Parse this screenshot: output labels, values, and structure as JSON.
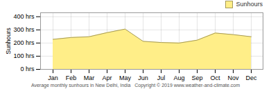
{
  "chart_data": {
    "type": "area",
    "categories": [
      "Jan",
      "Feb",
      "Mar",
      "Apr",
      "May",
      "Jun",
      "Jul",
      "Aug",
      "Sep",
      "Oct",
      "Nov",
      "Dec"
    ],
    "series": [
      {
        "name": "Sunhours",
        "color": "#FFEE88",
        "values": [
          228,
          242,
          248,
          279,
          306,
          213,
          204,
          200,
          222,
          276,
          264,
          248
        ]
      }
    ],
    "ylabel": "Sunhours",
    "ylim": [
      0,
      430
    ],
    "yticks": [
      {
        "value": 0,
        "label": "0 hrs"
      },
      {
        "value": 100,
        "label": "100 hrs"
      },
      {
        "value": 200,
        "label": "200 hrs"
      },
      {
        "value": 300,
        "label": "300 hrs"
      },
      {
        "value": 400,
        "label": "400 hrs"
      }
    ],
    "grid": true,
    "legend": "upper right",
    "caption": "Average monthly sunhours in New Delhi, India   Copyright © 2019 www.weather-and-climate.com"
  }
}
